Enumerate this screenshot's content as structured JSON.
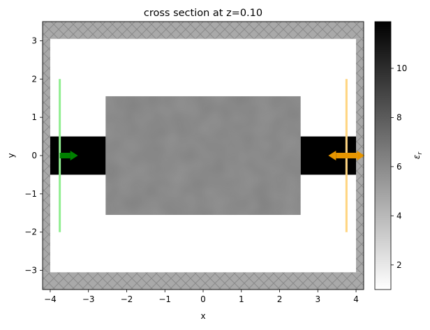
{
  "chart_data": {
    "type": "heatmap",
    "title": "cross section at z=0.10",
    "xlabel": "x",
    "ylabel": "y",
    "xlim": [
      -4.2,
      4.2
    ],
    "ylim": [
      -3.5,
      3.5
    ],
    "xticks": [
      -4,
      -3,
      -2,
      -1,
      0,
      1,
      2,
      3,
      4
    ],
    "yticks": [
      -3,
      -2,
      -1,
      0,
      1,
      2,
      3
    ],
    "grid": false,
    "regions": [
      {
        "name": "pml-boundary-top",
        "kind": "pml",
        "x": [
          -4.2,
          4.2
        ],
        "y": [
          3.05,
          3.5
        ]
      },
      {
        "name": "pml-boundary-bottom",
        "kind": "pml",
        "x": [
          -4.2,
          4.2
        ],
        "y": [
          -3.5,
          -3.05
        ]
      },
      {
        "name": "pml-boundary-left",
        "kind": "pml",
        "x": [
          -4.2,
          -4.0
        ],
        "y": [
          -3.05,
          3.05
        ]
      },
      {
        "name": "pml-boundary-right",
        "kind": "pml",
        "x": [
          4.0,
          4.2
        ],
        "y": [
          -3.05,
          3.05
        ]
      },
      {
        "name": "waveguide-left",
        "kind": "material",
        "x": [
          -4.0,
          -2.55
        ],
        "y": [
          -0.5,
          0.5
        ],
        "permittivity": 11.9
      },
      {
        "name": "waveguide-right",
        "kind": "material",
        "x": [
          2.55,
          4.0
        ],
        "y": [
          -0.5,
          0.5
        ],
        "permittivity": 11.9
      },
      {
        "name": "design-region",
        "kind": "material",
        "x": [
          -2.55,
          2.55
        ],
        "y": [
          -1.55,
          1.55
        ],
        "permittivity": 6.4
      }
    ],
    "sources": [
      {
        "name": "mode-source",
        "x": -3.75,
        "y": [
          -2.0,
          2.0
        ],
        "color": "#90ee90",
        "arrow_direction": "+x",
        "arrow_color": "#008000"
      }
    ],
    "monitors": [
      {
        "name": "mode-monitor",
        "x": 3.75,
        "y": [
          -2.0,
          2.0
        ],
        "color": "#ffd580",
        "arrow_direction": "both",
        "arrow_color": "#e69500"
      }
    ],
    "colorbar": {
      "label": "ε_r",
      "label_main": "ε",
      "label_sub": "r",
      "range": [
        1,
        11.9
      ],
      "ticks": [
        2,
        4,
        6,
        8,
        10
      ],
      "colormap": "gray_r"
    }
  }
}
